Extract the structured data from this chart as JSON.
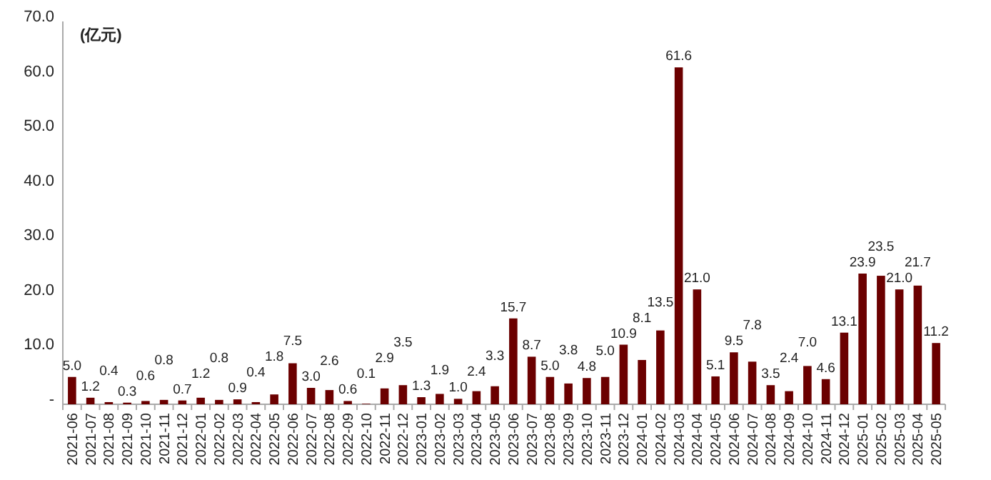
{
  "chart_data": {
    "type": "bar",
    "ylabel": "(亿元)",
    "categories": [
      "2021-06",
      "2021-07",
      "2021-08",
      "2021-09",
      "2021-10",
      "2021-11",
      "2021-12",
      "2022-01",
      "2022-02",
      "2022-03",
      "2022-04",
      "2022-05",
      "2022-06",
      "2022-07",
      "2022-08",
      "2022-09",
      "2022-10",
      "2022-11",
      "2022-12",
      "2023-01",
      "2023-02",
      "2023-03",
      "2023-04",
      "2023-05",
      "2023-06",
      "2023-07",
      "2023-08",
      "2023-09",
      "2023-10",
      "2023-11",
      "2023-12",
      "2024-01",
      "2024-02",
      "2024-03",
      "2024-04",
      "2024-05",
      "2024-06",
      "2024-07",
      "2024-08",
      "2024-09",
      "2024-10",
      "2024-11",
      "2024-12",
      "2025-01",
      "2025-02",
      "2025-03",
      "2025-04",
      "2025-05"
    ],
    "values": [
      5.0,
      1.2,
      0.4,
      0.3,
      0.6,
      0.8,
      0.7,
      1.2,
      0.8,
      0.9,
      0.4,
      1.8,
      7.5,
      3.0,
      2.6,
      0.6,
      0.1,
      2.9,
      3.5,
      1.3,
      1.9,
      1.0,
      2.4,
      3.3,
      15.7,
      8.7,
      5.0,
      3.8,
      4.8,
      5.0,
      10.9,
      8.1,
      13.5,
      61.6,
      21.0,
      5.1,
      9.5,
      7.8,
      3.5,
      2.4,
      7.0,
      4.6,
      13.1,
      23.9,
      23.5,
      21.0,
      21.7,
      11.2
    ],
    "value_labels": [
      "5.0",
      "1.2",
      "0.4",
      "0.3",
      "0.6",
      "0.8",
      "0.7",
      "1.2",
      "0.8",
      "0.9",
      "0.4",
      "1.8",
      "7.5",
      "3.0",
      "2.6",
      "0.6",
      "0.1",
      "2.9",
      "3.5",
      "1.3",
      "1.9",
      "1.0",
      "2.4",
      "3.3",
      "15.7",
      "8.7",
      "5.0",
      "3.8",
      "4.8",
      "5.0",
      "10.9",
      "8.1",
      "13.5",
      "61.6",
      "21.0",
      "5.1",
      "9.5",
      "7.8",
      "3.5",
      "2.4",
      "7.0",
      "4.6",
      "13.1",
      "23.9",
      "23.5",
      "21.0",
      "21.7",
      "11.2"
    ],
    "color": "#6b0000",
    "ylim": [
      0,
      70
    ],
    "yticks": [
      {
        "value": 0,
        "label": "-"
      },
      {
        "value": 10,
        "label": "10.0"
      },
      {
        "value": 20,
        "label": "20.0"
      },
      {
        "value": 30,
        "label": "30.0"
      },
      {
        "value": 40,
        "label": "40.0"
      },
      {
        "value": 50,
        "label": "50.0"
      },
      {
        "value": 60,
        "label": "60.0"
      },
      {
        "value": 70,
        "label": "70.0"
      }
    ],
    "grid": false
  }
}
